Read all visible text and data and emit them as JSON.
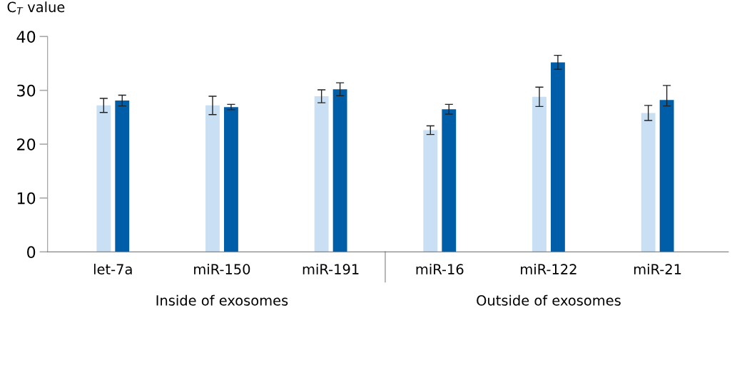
{
  "chart_data": {
    "type": "bar",
    "ylabel": "C$_{T}$ value",
    "categories": [
      "let-7a",
      "miR-150",
      "miR-191",
      "miR-16",
      "miR-122",
      "miR-21"
    ],
    "series": [
      {
        "color": "#c9e0f4",
        "values": [
          27.2,
          27.2,
          28.9,
          22.6,
          28.8,
          25.8
        ],
        "errors": [
          1.3,
          1.7,
          1.2,
          0.8,
          1.8,
          1.4
        ]
      },
      {
        "color": "#005da8",
        "values": [
          28.1,
          26.9,
          30.2,
          26.5,
          35.2,
          28.2
        ],
        "errors": [
          1.0,
          0.5,
          1.2,
          0.9,
          1.3,
          [
            27.1,
            30.9
          ]
        ]
      }
    ],
    "ylim": [
      0,
      40
    ],
    "yticks": [
      0,
      10,
      20,
      30,
      40
    ],
    "grid": false,
    "legend": false,
    "annotations": [
      "Inside of exosomes",
      "Outside of exosomes"
    ]
  }
}
